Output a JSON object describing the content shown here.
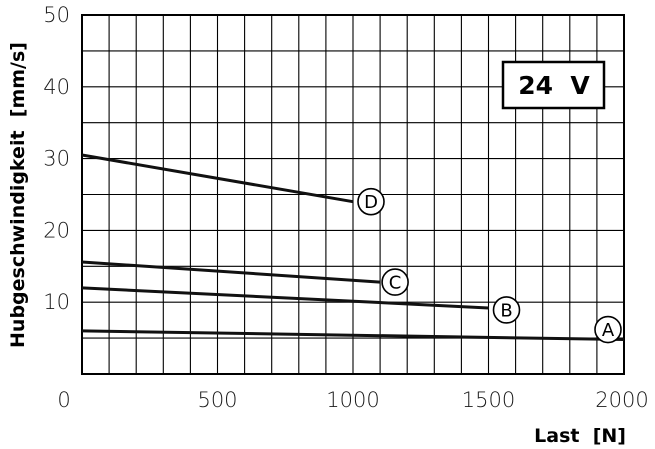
{
  "chart_data": {
    "type": "line",
    "xlabel": "Last  [N]",
    "ylabel": "Hubgeschwindigkeit  [mm/s]",
    "annotation": "24  V",
    "xlim": [
      0,
      2000
    ],
    "ylim": [
      0,
      50
    ],
    "x_ticks": [
      "0",
      "500",
      "1000",
      "1500",
      "2000"
    ],
    "y_ticks": [
      "50",
      "40",
      "30",
      "20",
      "10"
    ],
    "grid": true,
    "series": [
      {
        "name": "A",
        "points": [
          [
            0,
            6.0
          ],
          [
            2000,
            4.8
          ]
        ]
      },
      {
        "name": "B",
        "points": [
          [
            0,
            12.0
          ],
          [
            1500,
            9.2
          ]
        ]
      },
      {
        "name": "C",
        "points": [
          [
            0,
            15.6
          ],
          [
            1100,
            12.8
          ]
        ]
      },
      {
        "name": "D",
        "points": [
          [
            0,
            30.5
          ],
          [
            1000,
            24.0
          ]
        ]
      }
    ],
    "line_color": "#111111"
  }
}
